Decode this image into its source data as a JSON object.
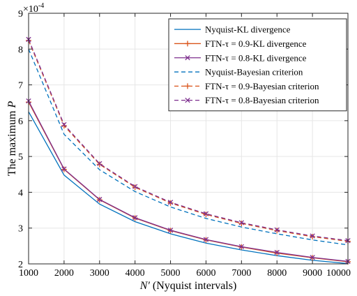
{
  "chart_data": {
    "type": "line",
    "xlabel_italic": "N′",
    "xlabel_rest": " (Nyquist intervals)",
    "ylabel_plain": "The maximum ",
    "ylabel_italic": "P",
    "y_multiplier_base": "×10",
    "y_multiplier_exp": "-4",
    "x": [
      1000,
      2000,
      3000,
      4000,
      5000,
      6000,
      7000,
      8000,
      9000,
      10000
    ],
    "xlim": [
      1000,
      10000
    ],
    "ylim": [
      2,
      9
    ],
    "x_ticks": [
      "1000",
      "2000",
      "3000",
      "4000",
      "5000",
      "6000",
      "7000",
      "8000",
      "9000",
      "10000"
    ],
    "y_ticks": [
      "2",
      "3",
      "4",
      "5",
      "6",
      "7",
      "8",
      "9"
    ],
    "grid": true,
    "legend_position": "top-right",
    "series": [
      {
        "name": "Nyquist-KL divergence",
        "color": "#0072BD",
        "dash": "solid",
        "marker": "none",
        "values": [
          6.25,
          4.48,
          3.67,
          3.18,
          2.84,
          2.58,
          2.39,
          2.23,
          2.1,
          2.01
        ]
      },
      {
        "name": "FTN-τ = 0.9-KL divergence",
        "color": "#D95319",
        "dash": "solid",
        "marker": "plus",
        "values": [
          6.52,
          4.64,
          3.79,
          3.28,
          2.93,
          2.67,
          2.47,
          2.3,
          2.17,
          2.06
        ]
      },
      {
        "name": "FTN-τ = 0.8-KL divergence",
        "color": "#7E2F8E",
        "dash": "solid",
        "marker": "x",
        "values": [
          6.55,
          4.65,
          3.8,
          3.29,
          2.94,
          2.68,
          2.48,
          2.32,
          2.18,
          2.07
        ]
      },
      {
        "name": "Nyquist-Bayesian criterion",
        "color": "#0072BD",
        "dash": "dashed",
        "marker": "none",
        "values": [
          8.0,
          5.62,
          4.63,
          4.02,
          3.59,
          3.27,
          3.03,
          2.84,
          2.67,
          2.53
        ]
      },
      {
        "name": "FTN-τ = 0.9-Bayesian criterion",
        "color": "#D95319",
        "dash": "dashed",
        "marker": "plus",
        "values": [
          8.24,
          5.86,
          4.78,
          4.14,
          3.7,
          3.38,
          3.13,
          2.93,
          2.76,
          2.63
        ]
      },
      {
        "name": "FTN-τ = 0.8-Bayesian criterion",
        "color": "#7E2F8E",
        "dash": "dashed",
        "marker": "x",
        "values": [
          8.27,
          5.89,
          4.8,
          4.16,
          3.72,
          3.4,
          3.15,
          2.95,
          2.78,
          2.65
        ]
      }
    ]
  }
}
